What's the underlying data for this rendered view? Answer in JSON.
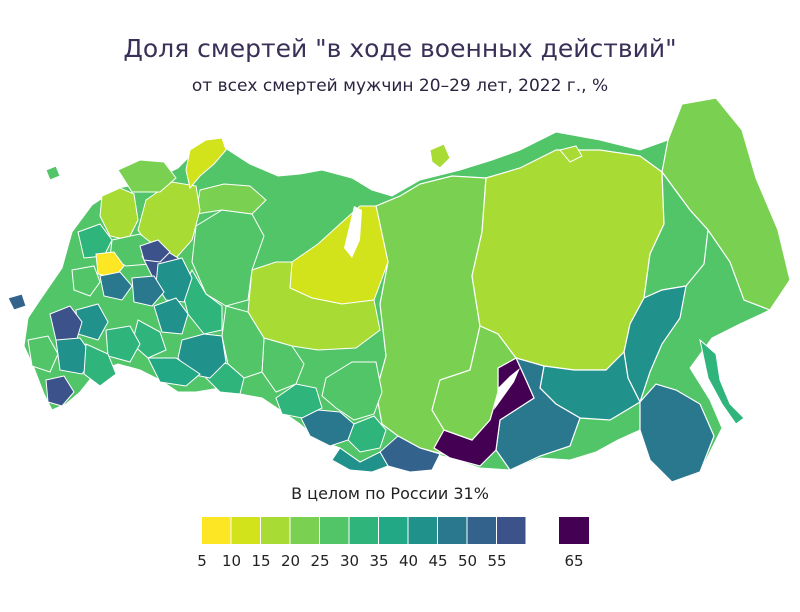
{
  "header": {
    "title": "Доля смертей \"в ходе военных действий\"",
    "subtitle": "от всех смертей мужчин 20–29 лет, 2022 г., %"
  },
  "summary": "В целом по России 31%",
  "colors": {
    "water": "#ffffff",
    "border": "#ffffff",
    "bins": [
      "#fde725",
      "#d2e21b",
      "#a8db34",
      "#7ad151",
      "#52c569",
      "#2fb47c",
      "#22a884",
      "#21918c",
      "#2a788e",
      "#33638d",
      "#3b528b",
      "#440154"
    ]
  },
  "legend": {
    "ticks": [
      "5",
      "10",
      "15",
      "20",
      "25",
      "30",
      "35",
      "40",
      "45",
      "50",
      "55",
      "65"
    ]
  }
}
